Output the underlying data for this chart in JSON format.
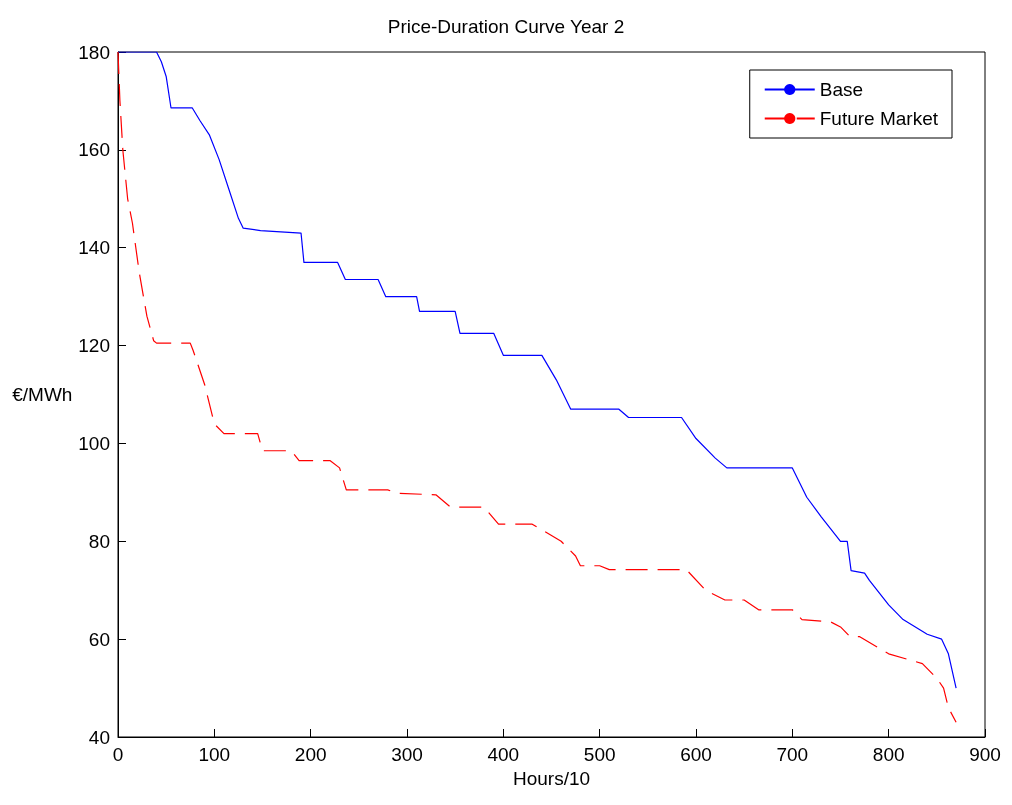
{
  "chart_data": {
    "type": "line",
    "title": "Price-Duration Curve Year 2",
    "xlabel": "Hours/10",
    "ylabel": "€/MWh",
    "xlim": [
      0,
      900
    ],
    "xticks": [
      0,
      100,
      200,
      300,
      400,
      500,
      600,
      700,
      800,
      900
    ],
    "ylim": [
      40,
      180
    ],
    "yticks": [
      40,
      60,
      80,
      100,
      120,
      140,
      160,
      180
    ],
    "grid": false,
    "legend": "top right",
    "marker": "none",
    "series": [
      {
        "name": "Base",
        "color": "#0000ff",
        "line_style": "solid",
        "x": [
          0,
          40,
          45,
          50,
          55,
          77,
          85,
          95,
          105,
          115,
          125,
          130,
          148,
          190,
          193,
          228,
          236,
          270,
          278,
          310,
          313,
          350,
          355,
          390,
          400,
          440,
          455,
          470,
          520,
          530,
          585,
          600,
          620,
          632,
          700,
          715,
          730,
          750,
          757,
          761,
          775,
          780,
          800,
          815,
          840,
          855,
          862,
          870
        ],
        "values": [
          180,
          180,
          178,
          175,
          168.6,
          168.6,
          166,
          163,
          158,
          152,
          146,
          144,
          143.5,
          143,
          137,
          137,
          133.5,
          133.5,
          130,
          130,
          127,
          127,
          122.5,
          122.5,
          118,
          118,
          113,
          107,
          107,
          105.3,
          105.3,
          101,
          97,
          95,
          95,
          89,
          85,
          80,
          80,
          74,
          73.5,
          72,
          67,
          64,
          61,
          60,
          57,
          50
        ]
      },
      {
        "name": "Future Market",
        "color": "#ff0000",
        "line_style": "dashed",
        "x": [
          0,
          2,
          5,
          10,
          15,
          22,
          30,
          37,
          40,
          75,
          78,
          90,
          100,
          110,
          145,
          150,
          180,
          188,
          220,
          230,
          237,
          280,
          290,
          330,
          345,
          380,
          395,
          430,
          460,
          475,
          480,
          500,
          510,
          590,
          610,
          630,
          650,
          665,
          700,
          710,
          740,
          750,
          760,
          770,
          800,
          835,
          850,
          857,
          862,
          870
        ],
        "values": [
          180,
          170,
          160,
          150,
          145,
          135,
          126,
          121,
          120.5,
          120.5,
          119,
          112,
          104,
          102,
          102,
          98.5,
          98.5,
          96.5,
          96.5,
          95,
          90.5,
          90.5,
          89.8,
          89.5,
          87,
          87,
          83.5,
          83.5,
          80,
          77,
          75,
          75,
          74.2,
          74.2,
          70,
          68,
          68,
          66,
          66,
          64,
          63.5,
          62.5,
          60.5,
          60.5,
          57,
          55,
          52,
          50,
          46,
          43
        ]
      }
    ]
  }
}
